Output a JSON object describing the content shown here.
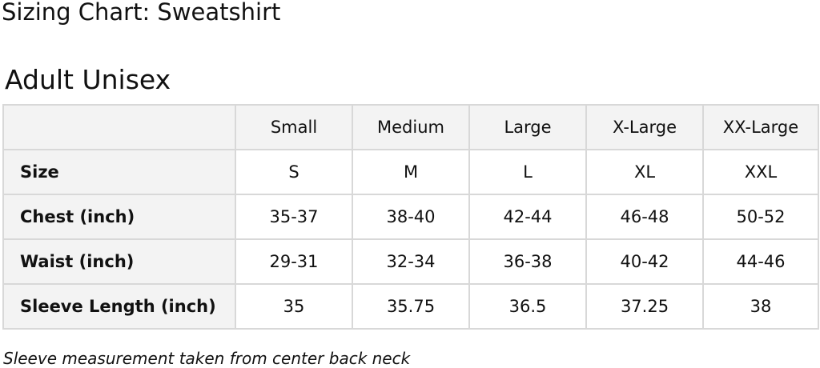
{
  "title": "Sizing Chart: Sweatshirt",
  "subtitle": "Adult Unisex",
  "table": {
    "columns": [
      "",
      "Small",
      "Medium",
      "Large",
      "X-Large",
      "XX-Large"
    ],
    "rows": [
      {
        "label": "Size",
        "values": [
          "S",
          "M",
          "L",
          "XL",
          "XXL"
        ]
      },
      {
        "label": "Chest (inch)",
        "values": [
          "35-37",
          "38-40",
          "42-44",
          "46-48",
          "50-52"
        ]
      },
      {
        "label": "Waist (inch)",
        "values": [
          "29-31",
          "32-34",
          "36-38",
          "40-42",
          "44-46"
        ]
      },
      {
        "label": "Sleeve Length (inch)",
        "values": [
          "35",
          "35.75",
          "36.5",
          "37.25",
          "38"
        ]
      }
    ]
  },
  "note": "Sleeve measurement taken from center back neck"
}
